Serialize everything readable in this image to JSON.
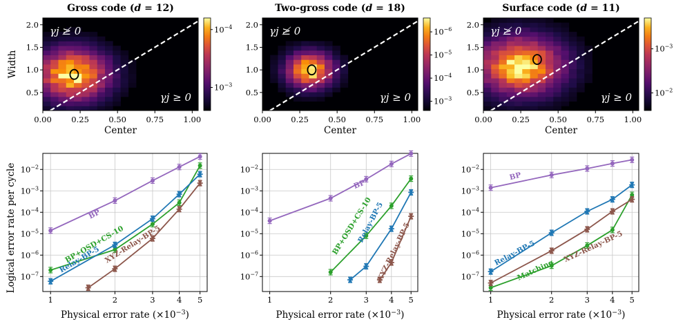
{
  "colors": {
    "BP": "#9467bd",
    "BP+OSD+CS-10": "#2ca02c",
    "Matching": "#2ca02c",
    "Relay-BP-5": "#1f77b4",
    "XYZ-Relay-BP-5": "#8c564b",
    "grid": "#c8c8c8",
    "diagonal": "#ffffff"
  },
  "heatmap_axes": {
    "xlabel": "Center",
    "ylabel": "Width",
    "xticks": [
      "0.00",
      "0.25",
      "0.50",
      "0.75",
      "1.00"
    ],
    "xtick_values": [
      0.0,
      0.25,
      0.5,
      0.75,
      1.0
    ],
    "yticks": [
      "0.5",
      "1.0",
      "1.5",
      "2.0"
    ],
    "ytick_values": [
      0.5,
      1.0,
      1.5,
      2.0
    ],
    "xlim": [
      0.0,
      1.04
    ],
    "ylim": [
      0.1,
      2.15
    ],
    "region_upper": "γj ≱ 0",
    "region_lower": "γj ≥ 0"
  },
  "line_axes": {
    "xlabel": "Physical error rate (×10−3)",
    "ylabel": "Logical error rate per cycle",
    "xticks": [
      "1",
      "2",
      "3",
      "4",
      "5"
    ],
    "xtick_values": [
      1,
      2,
      3,
      4,
      5
    ],
    "yticks": [
      "10−7",
      "10−6",
      "10−5",
      "10−4",
      "10−3",
      "10−2"
    ],
    "ytick_exponents": [
      -7,
      -6,
      -5,
      -4,
      -3,
      -2
    ],
    "xlim": [
      0.92,
      5.4
    ],
    "ylim_log10": [
      -7.7,
      -1.25
    ]
  },
  "chart_data": [
    {
      "type": "heatmap",
      "panel": "top-left",
      "title": "Gross code (d = 12)",
      "title_plain": "Gross code (",
      "title_d": "d",
      "title_rest": " = 12)",
      "xlabel": "Center",
      "ylabel": "Width",
      "peak_center": [
        0.2,
        0.9
      ],
      "spread": [
        0.17,
        0.4
      ],
      "circle": [
        0.21,
        0.9
      ],
      "colorbar_ticks": [
        "10−3",
        "10−4"
      ],
      "colorbar_tick_exponents": [
        -3,
        -4
      ],
      "colorbar_range_log10": [
        -4.2,
        -2.6
      ]
    },
    {
      "type": "heatmap",
      "panel": "top-middle",
      "title": "Two-gross code (d = 18)",
      "title_plain": "Two-gross code (",
      "title_d": "d",
      "title_rest": " = 18)",
      "xlabel": "Center",
      "ylabel": "Width",
      "peak_center": [
        0.32,
        1.0
      ],
      "spread": [
        0.11,
        0.28
      ],
      "circle": [
        0.33,
        1.0
      ],
      "colorbar_ticks": [
        "10−3",
        "10−4",
        "10−5",
        "10−6"
      ],
      "colorbar_tick_exponents": [
        -3,
        -4,
        -5,
        -6
      ],
      "colorbar_range_log10": [
        -6.6,
        -2.6
      ]
    },
    {
      "type": "heatmap",
      "panel": "top-right",
      "title": "Surface code (d = 11)",
      "title_plain": "Surface code (",
      "title_d": "d",
      "title_rest": " = 11)",
      "xlabel": "Center",
      "ylabel": "Width",
      "peak_center": [
        0.25,
        1.1
      ],
      "spread": [
        0.2,
        0.45
      ],
      "circle": [
        0.36,
        1.23
      ],
      "colorbar_ticks": [
        "10−2",
        "10−3"
      ],
      "colorbar_tick_exponents": [
        -2,
        -3
      ],
      "colorbar_range_log10": [
        -3.7,
        -1.6
      ]
    },
    {
      "type": "line",
      "panel": "bottom-left",
      "xlabel": "Physical error rate (×10−3)",
      "ylabel": "Logical error rate per cycle",
      "series": [
        {
          "name": "BP",
          "x": [
            1,
            2,
            3,
            4,
            5
          ],
          "y": [
            1.4e-05,
            0.00035,
            0.003,
            0.013,
            0.04
          ],
          "label_at": [
            1.62,
            6.5e-05
          ],
          "label_angle": -27
        },
        {
          "name": "BP+OSD+CS-10",
          "x": [
            1,
            2,
            3,
            4,
            5
          ],
          "y": [
            2e-07,
            1.8e-06,
            2.8e-05,
            0.00028,
            0.015
          ],
          "label_at": [
            1.62,
            2.6e-06
          ],
          "label_angle": -30
        },
        {
          "name": "Relay-BP-5",
          "x": [
            1,
            2,
            3,
            4,
            5
          ],
          "y": [
            6e-08,
            3e-06,
            5e-05,
            0.0007,
            0.006
          ],
          "label_at": [
            1.38,
            5e-07
          ],
          "label_angle": -30
        },
        {
          "name": "XYZ-Relay-BP-5",
          "x": [
            1.5,
            2,
            3,
            4,
            5
          ],
          "y": [
            3e-08,
            2.3e-07,
            6e-06,
            0.00014,
            0.0023
          ],
          "label_at": [
            2.45,
            2.6e-06
          ],
          "label_angle": -32
        }
      ]
    },
    {
      "type": "line",
      "panel": "bottom-middle",
      "xlabel": "Physical error rate (×10−3)",
      "series": [
        {
          "name": "BP",
          "x": [
            1,
            2,
            3,
            4,
            5
          ],
          "y": [
            4e-05,
            0.00045,
            0.0035,
            0.018,
            0.055
          ],
          "label_at": [
            2.8,
            0.0016
          ],
          "label_angle": -22
        },
        {
          "name": "BP+OSD+CS-10",
          "x": [
            2,
            3,
            4,
            5
          ],
          "y": [
            1.6e-07,
            8e-06,
            0.0002,
            0.0037
          ],
          "label_at": [
            2.6,
            2e-05
          ],
          "label_angle": -58
        },
        {
          "name": "Relay-BP-5",
          "x": [
            2.5,
            3,
            4,
            5
          ],
          "y": [
            7e-08,
            3e-07,
            1.7e-05,
            0.00085
          ],
          "label_at": [
            3.22,
            3e-05
          ],
          "label_angle": -62
        },
        {
          "name": "XYZ-Relay-BP-5",
          "x": [
            3.5,
            4,
            5
          ],
          "y": [
            7e-08,
            4.5e-07,
            6.5e-05
          ],
          "label_at": [
            4.2,
            1.3e-06
          ],
          "label_angle": -64
        }
      ]
    },
    {
      "type": "line",
      "panel": "bottom-right",
      "xlabel": "Physical error rate (×10−3)",
      "series": [
        {
          "name": "BP",
          "x": [
            1,
            2,
            3,
            4,
            5
          ],
          "y": [
            0.0014,
            0.0055,
            0.011,
            0.019,
            0.028
          ],
          "label_at": [
            1.33,
            0.0038
          ],
          "label_angle": -14
        },
        {
          "name": "Relay-BP-5",
          "x": [
            1,
            2,
            3,
            4,
            5
          ],
          "y": [
            1.7e-07,
            1.1e-05,
            0.00011,
            0.0004,
            0.0019
          ],
          "label_at": [
            1.33,
            1e-06
          ],
          "label_angle": -28
        },
        {
          "name": "Matching",
          "x": [
            1,
            2,
            3,
            4,
            5
          ],
          "y": [
            3e-08,
            3.2e-07,
            2.8e-06,
            1.5e-05,
            0.00065
          ],
          "label_at": [
            1.68,
            1.6e-07
          ],
          "label_angle": -25
        },
        {
          "name": "XYZ-Relay-BP-5",
          "x": [
            1,
            2,
            3,
            4,
            5
          ],
          "y": [
            5e-08,
            1.6e-06,
            1.6e-05,
            0.00011,
            0.0004
          ],
          "label_at": [
            3.25,
            2e-06
          ],
          "label_angle": -25
        }
      ]
    }
  ]
}
